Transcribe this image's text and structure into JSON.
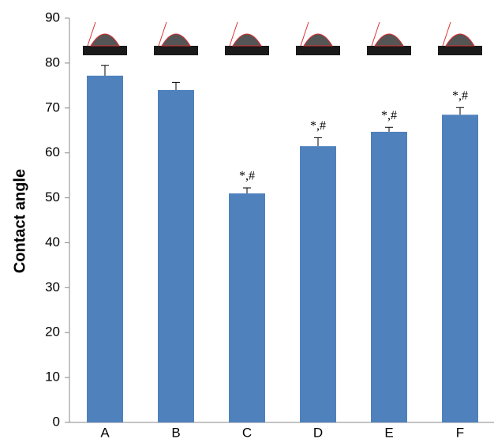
{
  "chart_data": {
    "type": "bar",
    "y_label": "Contact angle",
    "categories": [
      "A",
      "B",
      "C",
      "D",
      "E",
      "F"
    ],
    "values": [
      77.2,
      74.0,
      51.0,
      61.5,
      64.7,
      68.5
    ],
    "errors": [
      2.3,
      1.7,
      1.2,
      1.9,
      1.0,
      1.6
    ],
    "annotations": [
      null,
      null,
      "*,#",
      "*,#",
      "*,#",
      "*,#"
    ],
    "color": "#4f81bd",
    "ylim": [
      0,
      90
    ],
    "yticks": [
      0,
      10,
      20,
      30,
      40,
      50,
      60,
      70,
      80,
      90
    ]
  }
}
